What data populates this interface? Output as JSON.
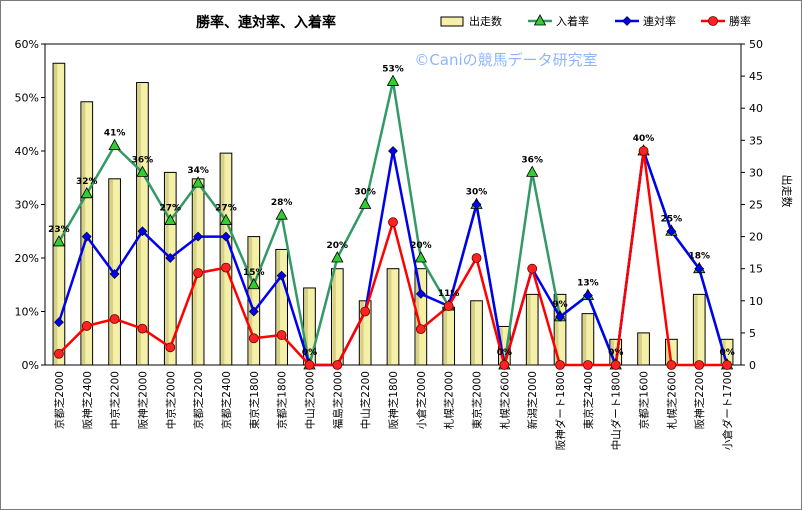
{
  "chart_data": {
    "type": "bar+line",
    "title": "勝率、連対率、入着率",
    "watermark": "©Caniの競馬データ研究室",
    "categories": [
      "京都芝2000",
      "阪神芝2400",
      "中京芝2200",
      "阪神芝2000",
      "中京芝2000",
      "京都芝2200",
      "京都芝2400",
      "東京芝1800",
      "京都芝1800",
      "中山芝2000",
      "福島芝2000",
      "中山芝2200",
      "阪神芝1800",
      "小倉芝2000",
      "札幌芝2000",
      "東京芝2000",
      "札幌芝2600",
      "新潟芝2000",
      "阪神ダート1800",
      "東京芝2400",
      "中山ダート1800",
      "京都芝1600",
      "札幌芝2600",
      "阪神芝2200",
      "小倉ダート1700"
    ],
    "y_left": {
      "min": 0,
      "max": 60,
      "step": 10,
      "suffix": "%"
    },
    "y_right": {
      "label": "出走数",
      "min": 0,
      "max": 50,
      "step": 5
    },
    "series": [
      {
        "name": "出走数",
        "type": "bar",
        "axis": "right",
        "color": "#f5f0a8",
        "values": [
          47,
          41,
          29,
          44,
          30,
          29,
          33,
          20,
          18,
          12,
          15,
          10,
          15,
          15,
          9,
          10,
          6,
          11,
          11,
          8,
          4,
          5,
          4,
          11,
          4
        ]
      },
      {
        "name": "入着率",
        "type": "line",
        "axis": "left",
        "color": "#339966",
        "marker": "triangle",
        "values": [
          23,
          32,
          41,
          36,
          27,
          34,
          27,
          15,
          28,
          0,
          20,
          30,
          53,
          20,
          11,
          30,
          0,
          36,
          9,
          13,
          0,
          40,
          25,
          18,
          0
        ]
      },
      {
        "name": "連対率",
        "type": "line",
        "axis": "left",
        "color": "#0000ee",
        "marker": "diamond",
        "values": [
          8,
          24,
          17,
          25,
          20,
          24,
          24,
          10,
          16.7,
          0,
          0,
          10,
          40,
          13.3,
          11,
          30,
          0,
          18,
          9,
          13,
          0,
          40,
          25,
          18,
          0
        ]
      },
      {
        "name": "勝率",
        "type": "line",
        "axis": "left",
        "color": "#ff0000",
        "marker": "circle",
        "values": [
          2.1,
          7.3,
          8.6,
          6.8,
          3.3,
          17.2,
          18.2,
          5,
          5.6,
          0,
          0,
          10,
          26.7,
          6.7,
          11,
          20,
          0,
          18,
          0,
          0,
          0,
          40,
          0,
          0,
          0
        ]
      }
    ],
    "data_labels": {
      "series": "入着率",
      "values": [
        "23%",
        "32%",
        "41%",
        "36%",
        "27%",
        "34%",
        "27%",
        "15%",
        "28%",
        "0%",
        "20%",
        "30%",
        "53%",
        "20%",
        "11%",
        "30%",
        "0%",
        "36%",
        "9%",
        "13%",
        "0%",
        "40%",
        "25%",
        "18%",
        "0%"
      ]
    },
    "legend": {
      "position": "top-right",
      "order": [
        "出走数",
        "入着率",
        "連対率",
        "勝率"
      ]
    },
    "grid": false
  }
}
